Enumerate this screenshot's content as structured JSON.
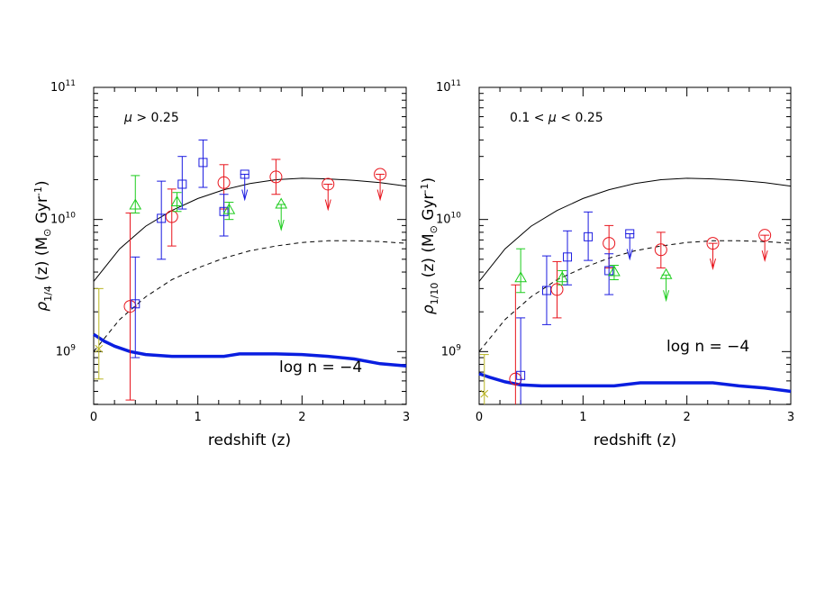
{
  "chart_data": [
    {
      "type": "scatter",
      "xlabel": "redshift (z)",
      "ylabel": {
        "rho": "ρ",
        "sub": "1/4",
        "rest": "(z) (M",
        "sun": "⊙",
        "gyr": "Gyr",
        "exp": "-1",
        "close": ")"
      },
      "annotation": {
        "mu": "μ",
        "text": " > 0.25"
      },
      "log_label": "log n = −4",
      "xlim": [
        0,
        3
      ],
      "ylim_log10": [
        8.6,
        11
      ],
      "xticks": [
        {
          "v": 0,
          "label": "0"
        },
        {
          "v": 1,
          "label": "1"
        },
        {
          "v": 2,
          "label": "2"
        },
        {
          "v": 3,
          "label": "3"
        }
      ],
      "yticks": [
        {
          "base": "10",
          "exp": "9",
          "p": 9
        },
        {
          "base": "10",
          "exp": "10",
          "p": 10
        },
        {
          "base": "10",
          "exp": "11",
          "p": 11
        }
      ],
      "colors": {
        "red": "#e8141c",
        "blue": "#1a1ae0",
        "green": "#1ccc1c",
        "yellow": "#b8b420",
        "thick": "#0a1ee0"
      },
      "solid_curve": [
        [
          0,
          3400000000.0
        ],
        [
          0.25,
          6000000000.0
        ],
        [
          0.5,
          8900000000.0
        ],
        [
          0.75,
          11700000000.0
        ],
        [
          1.0,
          14400000000.0
        ],
        [
          1.25,
          16800000000.0
        ],
        [
          1.5,
          18700000000.0
        ],
        [
          1.75,
          20000000000.0
        ],
        [
          2.0,
          20500000000.0
        ],
        [
          2.25,
          20300000000.0
        ],
        [
          2.5,
          19800000000.0
        ],
        [
          2.75,
          19000000000.0
        ],
        [
          3.0,
          17900000000.0
        ]
      ],
      "dashed_curve": [
        [
          0,
          1000000000.0
        ],
        [
          0.25,
          1750000000.0
        ],
        [
          0.5,
          2600000000.0
        ],
        [
          0.75,
          3500000000.0
        ],
        [
          1.0,
          4300000000.0
        ],
        [
          1.25,
          5100000000.0
        ],
        [
          1.5,
          5800000000.0
        ],
        [
          1.75,
          6300000000.0
        ],
        [
          2.0,
          6700000000.0
        ],
        [
          2.25,
          6900000000.0
        ],
        [
          2.5,
          6900000000.0
        ],
        [
          2.75,
          6800000000.0
        ],
        [
          3.0,
          6600000000.0
        ]
      ],
      "thick_curve": [
        [
          0,
          1350000000.0
        ],
        [
          0.1,
          1200000000.0
        ],
        [
          0.2,
          1100000000.0
        ],
        [
          0.35,
          1000000000.0
        ],
        [
          0.5,
          950000000.0
        ],
        [
          0.75,
          920000000.0
        ],
        [
          1.0,
          920000000.0
        ],
        [
          1.25,
          920000000.0
        ],
        [
          1.4,
          960000000.0
        ],
        [
          1.75,
          960000000.0
        ],
        [
          2.0,
          950000000.0
        ],
        [
          2.25,
          920000000.0
        ],
        [
          2.5,
          880000000.0
        ],
        [
          2.75,
          810000000.0
        ],
        [
          3.0,
          780000000.0
        ]
      ],
      "points": [
        {
          "marker": "x",
          "color": "yellow",
          "x": 0.05,
          "y": 1050000000.0,
          "lo": 620000000.0,
          "hi": 3000000000.0
        },
        {
          "marker": "circle",
          "color": "red",
          "x": 0.35,
          "y": 2200000000.0,
          "lo": 430000000.0,
          "hi": 11200000000.0
        },
        {
          "marker": "square",
          "color": "blue",
          "x": 0.4,
          "y": 2300000000.0,
          "lo": 900000000.0,
          "hi": 5200000000.0
        },
        {
          "marker": "triangle",
          "color": "green",
          "x": 0.4,
          "y": 12800000000.0,
          "lo": 11200000000.0,
          "hi": 21500000000.0
        },
        {
          "marker": "square",
          "color": "blue",
          "x": 0.65,
          "y": 10200000000.0,
          "lo": 5000000000.0,
          "hi": 19500000000.0
        },
        {
          "marker": "circle",
          "color": "red",
          "x": 0.75,
          "y": 10500000000.0,
          "lo": 6300000000.0,
          "hi": 17000000000.0
        },
        {
          "marker": "triangle",
          "color": "green",
          "x": 0.8,
          "y": 13500000000.0,
          "lo": 11500000000.0,
          "hi": 16000000000.0
        },
        {
          "marker": "square",
          "color": "blue",
          "x": 0.85,
          "y": 18500000000.0,
          "lo": 12000000000.0,
          "hi": 30000000000.0
        },
        {
          "marker": "square",
          "color": "blue",
          "x": 1.05,
          "y": 27000000000.0,
          "lo": 17500000000.0,
          "hi": 40000000000.0
        },
        {
          "marker": "circle",
          "color": "red",
          "x": 1.25,
          "y": 19000000000.0,
          "lo": 12000000000.0,
          "hi": 26000000000.0
        },
        {
          "marker": "square",
          "color": "blue",
          "x": 1.25,
          "y": 11500000000.0,
          "lo": 7500000000.0,
          "hi": 15500000000.0
        },
        {
          "marker": "triangle",
          "color": "green",
          "x": 1.3,
          "y": 11800000000.0,
          "lo": 10000000000.0,
          "hi": 13500000000.0
        },
        {
          "marker": "circle",
          "color": "red",
          "x": 1.75,
          "y": 21000000000.0,
          "lo": 15500000000.0,
          "hi": 28500000000.0
        }
      ],
      "limits": [
        {
          "marker": "square",
          "color": "blue",
          "x": 1.45,
          "y": 22000000000.0
        },
        {
          "marker": "triangle",
          "color": "green",
          "x": 1.8,
          "y": 13000000000.0
        },
        {
          "marker": "circle",
          "color": "red",
          "x": 2.25,
          "y": 18500000000.0
        },
        {
          "marker": "circle",
          "color": "red",
          "x": 2.75,
          "y": 22000000000.0
        }
      ]
    },
    {
      "type": "scatter",
      "xlabel": "redshift (z)",
      "ylabel": {
        "rho": "ρ",
        "sub": "1/10",
        "rest": "(z) (M",
        "sun": "⊙",
        "gyr": "Gyr",
        "exp": "-1",
        "close": ")"
      },
      "annotation": {
        "mu": "μ",
        "text": "0.1 < ",
        "text2": " < 0.25"
      },
      "log_label": "log n = −4",
      "xlim": [
        0,
        3
      ],
      "ylim_log10": [
        8.6,
        11
      ],
      "xticks": [
        {
          "v": 0,
          "label": "0"
        },
        {
          "v": 1,
          "label": "1"
        },
        {
          "v": 2,
          "label": "2"
        },
        {
          "v": 3,
          "label": "3"
        }
      ],
      "yticks": [
        {
          "base": "10",
          "exp": "9",
          "p": 9
        },
        {
          "base": "10",
          "exp": "10",
          "p": 10
        },
        {
          "base": "10",
          "exp": "11",
          "p": 11
        }
      ],
      "colors": {
        "red": "#e8141c",
        "blue": "#1a1ae0",
        "green": "#1ccc1c",
        "yellow": "#b8b420",
        "thick": "#0a1ee0"
      },
      "solid_curve": [
        [
          0,
          3400000000.0
        ],
        [
          0.25,
          6000000000.0
        ],
        [
          0.5,
          8900000000.0
        ],
        [
          0.75,
          11700000000.0
        ],
        [
          1.0,
          14400000000.0
        ],
        [
          1.25,
          16800000000.0
        ],
        [
          1.5,
          18700000000.0
        ],
        [
          1.75,
          20000000000.0
        ],
        [
          2.0,
          20500000000.0
        ],
        [
          2.25,
          20300000000.0
        ],
        [
          2.5,
          19800000000.0
        ],
        [
          2.75,
          19000000000.0
        ],
        [
          3.0,
          17900000000.0
        ]
      ],
      "dashed_curve": [
        [
          0,
          1000000000.0
        ],
        [
          0.25,
          1750000000.0
        ],
        [
          0.5,
          2600000000.0
        ],
        [
          0.75,
          3500000000.0
        ],
        [
          1.0,
          4300000000.0
        ],
        [
          1.25,
          5100000000.0
        ],
        [
          1.5,
          5800000000.0
        ],
        [
          1.75,
          6300000000.0
        ],
        [
          2.0,
          6700000000.0
        ],
        [
          2.25,
          6900000000.0
        ],
        [
          2.5,
          6900000000.0
        ],
        [
          2.75,
          6800000000.0
        ],
        [
          3.0,
          6600000000.0
        ]
      ],
      "thick_curve": [
        [
          0,
          680000000.0
        ],
        [
          0.1,
          640000000.0
        ],
        [
          0.25,
          590000000.0
        ],
        [
          0.4,
          560000000.0
        ],
        [
          0.6,
          550000000.0
        ],
        [
          1.0,
          550000000.0
        ],
        [
          1.3,
          550000000.0
        ],
        [
          1.55,
          580000000.0
        ],
        [
          1.75,
          580000000.0
        ],
        [
          2.0,
          580000000.0
        ],
        [
          2.25,
          580000000.0
        ],
        [
          2.5,
          550000000.0
        ],
        [
          2.75,
          530000000.0
        ],
        [
          3.0,
          500000000.0
        ]
      ],
      "points": [
        {
          "marker": "x",
          "color": "yellow",
          "x": 0.05,
          "y": 480000000.0,
          "lo": 260000000.0,
          "hi": 950000000.0
        },
        {
          "marker": "circle",
          "color": "red",
          "x": 0.35,
          "y": 620000000.0,
          "lo": 260000000.0,
          "hi": 3200000000.0
        },
        {
          "marker": "square",
          "color": "blue",
          "x": 0.4,
          "y": 660000000.0,
          "lo": 290000000.0,
          "hi": 1800000000.0
        },
        {
          "marker": "triangle",
          "color": "green",
          "x": 0.4,
          "y": 3600000000.0,
          "lo": 2800000000.0,
          "hi": 6000000000.0
        },
        {
          "marker": "square",
          "color": "blue",
          "x": 0.65,
          "y": 2900000000.0,
          "lo": 1600000000.0,
          "hi": 5300000000.0
        },
        {
          "marker": "circle",
          "color": "red",
          "x": 0.75,
          "y": 2950000000.0,
          "lo": 1800000000.0,
          "hi": 4800000000.0
        },
        {
          "marker": "triangle",
          "color": "green",
          "x": 0.8,
          "y": 3600000000.0,
          "lo": 3200000000.0,
          "hi": 4100000000.0
        },
        {
          "marker": "square",
          "color": "blue",
          "x": 0.85,
          "y": 5200000000.0,
          "lo": 3200000000.0,
          "hi": 8200000000.0
        },
        {
          "marker": "square",
          "color": "blue",
          "x": 1.05,
          "y": 7400000000.0,
          "lo": 4900000000.0,
          "hi": 11400000000.0
        },
        {
          "marker": "circle",
          "color": "red",
          "x": 1.25,
          "y": 6600000000.0,
          "lo": 4300000000.0,
          "hi": 9000000000.0
        },
        {
          "marker": "square",
          "color": "blue",
          "x": 1.25,
          "y": 4100000000.0,
          "lo": 2700000000.0,
          "hi": 5500000000.0
        },
        {
          "marker": "triangle",
          "color": "green",
          "x": 1.3,
          "y": 4000000000.0,
          "lo": 3500000000.0,
          "hi": 4500000000.0
        },
        {
          "marker": "circle",
          "color": "red",
          "x": 1.75,
          "y": 5900000000.0,
          "lo": 4300000000.0,
          "hi": 8000000000.0
        }
      ],
      "limits": [
        {
          "marker": "square",
          "color": "blue",
          "x": 1.45,
          "y": 7800000000.0
        },
        {
          "marker": "triangle",
          "color": "green",
          "x": 1.8,
          "y": 3800000000.0
        },
        {
          "marker": "circle",
          "color": "red",
          "x": 2.25,
          "y": 6600000000.0
        },
        {
          "marker": "circle",
          "color": "red",
          "x": 2.75,
          "y": 7600000000.0
        }
      ]
    }
  ]
}
